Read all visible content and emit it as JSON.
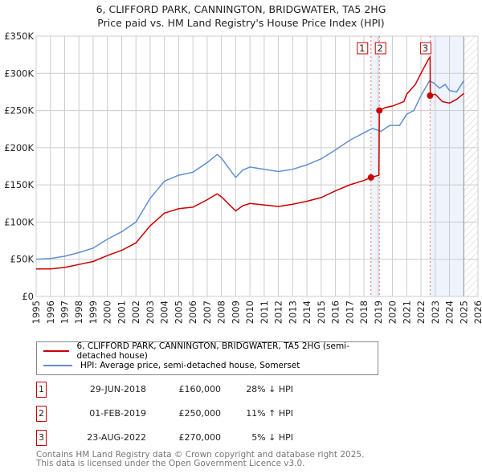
{
  "title": "6, CLIFFORD PARK, CANNINGTON, BRIDGWATER, TA5 2HG",
  "subtitle": "Price paid vs. HM Land Registry's House Price Index (HPI)",
  "chart_data": {
    "type": "line",
    "xlim": [
      1995,
      2026
    ],
    "ylim": [
      0,
      350000
    ],
    "x_ticks": [
      "1995",
      "1996",
      "1997",
      "1998",
      "1999",
      "2000",
      "2001",
      "2002",
      "2003",
      "2004",
      "2005",
      "2006",
      "2007",
      "2008",
      "2009",
      "2010",
      "2011",
      "2012",
      "2013",
      "2014",
      "2015",
      "2016",
      "2017",
      "2018",
      "2019",
      "2020",
      "2021",
      "2022",
      "2023",
      "2024",
      "2025",
      "2026"
    ],
    "y_ticks": [
      {
        "v": 0,
        "label": "£0"
      },
      {
        "v": 50000,
        "label": "£50K"
      },
      {
        "v": 100000,
        "label": "£100K"
      },
      {
        "v": 150000,
        "label": "£150K"
      },
      {
        "v": 200000,
        "label": "£200K"
      },
      {
        "v": 250000,
        "label": "£250K"
      },
      {
        "v": 300000,
        "label": "£300K"
      },
      {
        "v": 350000,
        "label": "£350K"
      }
    ],
    "series": [
      {
        "name": "6, CLIFFORD PARK, CANNINGTON, BRIDGWATER, TA5 2HG (semi-detached house)",
        "color": "#cc0000",
        "points": [
          [
            1995,
            37000
          ],
          [
            1996,
            37000
          ],
          [
            1997,
            39000
          ],
          [
            1998,
            43000
          ],
          [
            1999,
            47000
          ],
          [
            2000,
            55000
          ],
          [
            2001,
            62000
          ],
          [
            2002,
            72000
          ],
          [
            2003,
            95000
          ],
          [
            2004,
            112000
          ],
          [
            2005,
            118000
          ],
          [
            2006,
            120000
          ],
          [
            2007,
            130000
          ],
          [
            2007.7,
            138000
          ],
          [
            2008,
            134000
          ],
          [
            2009,
            115000
          ],
          [
            2009.5,
            122000
          ],
          [
            2010,
            125000
          ],
          [
            2011,
            123000
          ],
          [
            2012,
            121000
          ],
          [
            2013,
            124000
          ],
          [
            2014,
            128000
          ],
          [
            2015,
            133000
          ],
          [
            2016,
            142000
          ],
          [
            2017,
            150000
          ],
          [
            2018,
            156000
          ],
          [
            2018.49,
            160000
          ],
          [
            2019.05,
            163000
          ],
          [
            2019.08,
            250000
          ],
          [
            2019.5,
            254000
          ],
          [
            2020,
            256000
          ],
          [
            2020.8,
            262000
          ],
          [
            2021,
            272000
          ],
          [
            2021.6,
            285000
          ],
          [
            2022,
            300000
          ],
          [
            2022.5,
            318000
          ],
          [
            2022.64,
            322000
          ],
          [
            2022.65,
            270000
          ],
          [
            2023,
            272000
          ],
          [
            2023.5,
            262000
          ],
          [
            2024,
            260000
          ],
          [
            2024.5,
            265000
          ],
          [
            2025,
            273000
          ]
        ]
      },
      {
        "name": "HPI: Average price, semi-detached house, Somerset",
        "color": "#6090d0",
        "points": [
          [
            1995,
            50000
          ],
          [
            1996,
            51000
          ],
          [
            1997,
            54000
          ],
          [
            1998,
            59000
          ],
          [
            1999,
            65000
          ],
          [
            2000,
            77000
          ],
          [
            2001,
            87000
          ],
          [
            2002,
            100000
          ],
          [
            2003,
            132000
          ],
          [
            2004,
            155000
          ],
          [
            2005,
            163000
          ],
          [
            2006,
            167000
          ],
          [
            2007,
            180000
          ],
          [
            2007.7,
            191000
          ],
          [
            2008,
            186000
          ],
          [
            2009,
            160000
          ],
          [
            2009.5,
            170000
          ],
          [
            2010,
            174000
          ],
          [
            2011,
            171000
          ],
          [
            2012,
            168000
          ],
          [
            2013,
            171000
          ],
          [
            2014,
            177000
          ],
          [
            2015,
            185000
          ],
          [
            2016,
            197000
          ],
          [
            2017,
            210000
          ],
          [
            2018,
            220000
          ],
          [
            2018.6,
            226000
          ],
          [
            2019.2,
            222000
          ],
          [
            2019.8,
            230000
          ],
          [
            2020.5,
            230000
          ],
          [
            2021,
            245000
          ],
          [
            2021.5,
            250000
          ],
          [
            2022,
            270000
          ],
          [
            2022.6,
            290000
          ],
          [
            2022.9,
            287000
          ],
          [
            2023.3,
            280000
          ],
          [
            2023.7,
            285000
          ],
          [
            2024,
            277000
          ],
          [
            2024.5,
            275000
          ],
          [
            2025,
            290000
          ]
        ]
      }
    ],
    "sales": [
      {
        "id": "1",
        "date": "29-JUN-2018",
        "x": 2018.49,
        "price": "£160,000",
        "value": 160000,
        "hpi": "28% ↓ HPI"
      },
      {
        "id": "2",
        "date": "01-FEB-2019",
        "x": 2019.08,
        "price": "£250,000",
        "value": 250000,
        "hpi": "11% ↑ HPI"
      },
      {
        "id": "3",
        "date": "23-AUG-2022",
        "x": 2022.64,
        "price": "£270,000",
        "value": 270000,
        "hpi": "5% ↓ HPI"
      }
    ],
    "shaded": [
      [
        2018.49,
        2019.08
      ],
      [
        2022.64,
        2025.0
      ]
    ],
    "future_from": 2025.0
  },
  "footer": [
    "Contains HM Land Registry data © Crown copyright and database right 2025.",
    "This data is licensed under the Open Government Licence v3.0."
  ]
}
